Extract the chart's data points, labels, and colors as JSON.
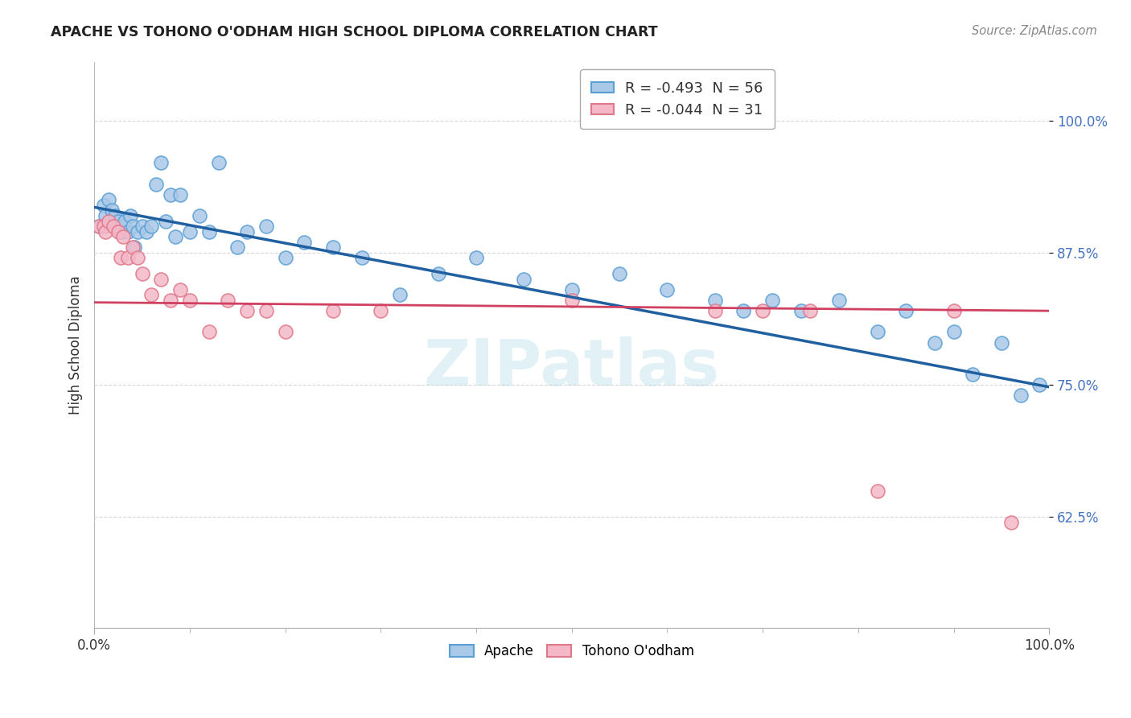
{
  "title": "APACHE VS TOHONO O'ODHAM HIGH SCHOOL DIPLOMA CORRELATION CHART",
  "source": "Source: ZipAtlas.com",
  "ylabel": "High School Diploma",
  "xlabel": "",
  "watermark": "ZIPatlas",
  "legend_apache_label": "R = -0.493  N = 56",
  "legend_tohono_label": "R = -0.044  N = 31",
  "apache_color": "#aac8e8",
  "apache_edge_color": "#5a9fd4",
  "apache_line_color": "#2060a0",
  "tohono_color": "#f4b8c8",
  "tohono_edge_color": "#e0788a",
  "tohono_line_color": "#d04060",
  "background_color": "#ffffff",
  "grid_color": "#cccccc",
  "xlim": [
    0.0,
    1.0
  ],
  "ylim": [
    0.52,
    1.055
  ],
  "yticks": [
    0.625,
    0.75,
    0.875,
    1.0
  ],
  "ytick_labels": [
    "62.5%",
    "75.0%",
    "87.5%",
    "100.0%"
  ],
  "xtick_labels": [
    "0.0%",
    "100.0%"
  ],
  "xticks": [
    0.0,
    1.0
  ],
  "apache_x": [
    0.005,
    0.01,
    0.012,
    0.015,
    0.018,
    0.02,
    0.022,
    0.025,
    0.028,
    0.03,
    0.032,
    0.035,
    0.038,
    0.04,
    0.042,
    0.045,
    0.05,
    0.055,
    0.06,
    0.065,
    0.07,
    0.075,
    0.08,
    0.085,
    0.09,
    0.1,
    0.11,
    0.12,
    0.13,
    0.15,
    0.16,
    0.18,
    0.2,
    0.22,
    0.25,
    0.28,
    0.32,
    0.36,
    0.4,
    0.45,
    0.5,
    0.55,
    0.6,
    0.65,
    0.68,
    0.71,
    0.74,
    0.78,
    0.82,
    0.85,
    0.88,
    0.9,
    0.92,
    0.95,
    0.97,
    0.99
  ],
  "apache_y": [
    0.9,
    0.92,
    0.91,
    0.925,
    0.915,
    0.9,
    0.91,
    0.905,
    0.895,
    0.9,
    0.905,
    0.895,
    0.91,
    0.9,
    0.88,
    0.895,
    0.9,
    0.895,
    0.9,
    0.94,
    0.96,
    0.905,
    0.93,
    0.89,
    0.93,
    0.895,
    0.91,
    0.895,
    0.96,
    0.88,
    0.895,
    0.9,
    0.87,
    0.885,
    0.88,
    0.87,
    0.835,
    0.855,
    0.87,
    0.85,
    0.84,
    0.855,
    0.84,
    0.83,
    0.82,
    0.83,
    0.82,
    0.83,
    0.8,
    0.82,
    0.79,
    0.8,
    0.76,
    0.79,
    0.74,
    0.75
  ],
  "tohono_x": [
    0.005,
    0.01,
    0.012,
    0.015,
    0.02,
    0.025,
    0.028,
    0.03,
    0.035,
    0.04,
    0.045,
    0.05,
    0.06,
    0.07,
    0.08,
    0.09,
    0.1,
    0.12,
    0.14,
    0.16,
    0.18,
    0.2,
    0.25,
    0.3,
    0.5,
    0.65,
    0.7,
    0.75,
    0.82,
    0.9,
    0.96
  ],
  "tohono_y": [
    0.9,
    0.9,
    0.895,
    0.905,
    0.9,
    0.895,
    0.87,
    0.89,
    0.87,
    0.88,
    0.87,
    0.855,
    0.835,
    0.85,
    0.83,
    0.84,
    0.83,
    0.8,
    0.83,
    0.82,
    0.82,
    0.8,
    0.82,
    0.82,
    0.83,
    0.82,
    0.82,
    0.82,
    0.65,
    0.82,
    0.62
  ]
}
